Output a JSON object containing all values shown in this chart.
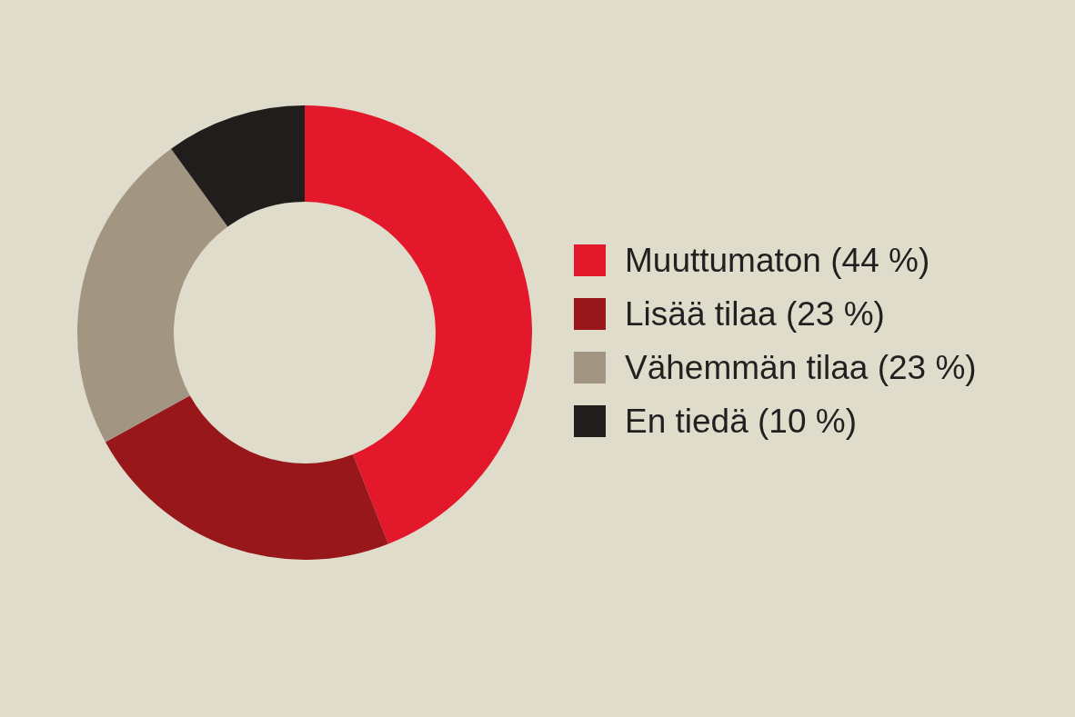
{
  "chart_data": {
    "type": "donut",
    "categories": [
      "Muuttumaton (44 %)",
      "Lisää tilaa (23 %)",
      "Vähemmän tilaa (23 %)",
      "En tiedä (10 %)"
    ],
    "values": [
      44,
      23,
      23,
      10
    ],
    "colors": [
      "#e3182b",
      "#98171a",
      "#a29683",
      "#1f1e1d"
    ],
    "legend": "right"
  }
}
